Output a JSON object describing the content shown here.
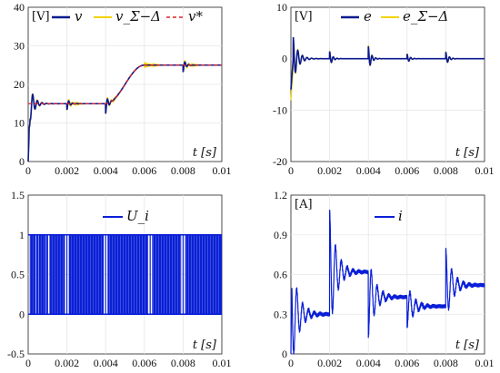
{
  "colors": {
    "blue": "#0a1fd6",
    "darkblue": "#0b1a8f",
    "yellow": "#f2d200",
    "red": "#e0202a",
    "grid": "#e6e6e6"
  },
  "chart_data": [
    {
      "id": "tl",
      "type": "line",
      "unit_label": "[V]",
      "xlabel": "t [s]",
      "xlim": [
        0,
        0.01
      ],
      "ylim": [
        0,
        40
      ],
      "xticks": [
        "0",
        "0.002",
        "0.004",
        "0.006",
        "0.008",
        "0.01"
      ],
      "yticks": [
        "0",
        "10",
        "20",
        "30",
        "40"
      ],
      "legend": [
        "v",
        "v_Σ−Δ",
        "v*"
      ],
      "series": [
        {
          "name": "v",
          "style": "solid",
          "color": "#0b1a8f"
        },
        {
          "name": "v_Σ−Δ",
          "style": "solid",
          "color": "#f2d200"
        },
        {
          "name": "v*",
          "style": "dashed",
          "color": "#e0202a"
        }
      ],
      "reference_segments": [
        {
          "t": [
            0,
            0.004
          ],
          "value": 15
        },
        {
          "t": [
            0.004,
            0.006
          ],
          "value_from": 15,
          "value_to": 25
        },
        {
          "t": [
            0.006,
            0.01
          ],
          "value": 25
        }
      ],
      "disturbance_times": [
        0.002,
        0.004,
        0.008
      ]
    },
    {
      "id": "tr",
      "type": "line",
      "unit_label": "[V]",
      "xlabel": "t [s]",
      "xlim": [
        0,
        0.01
      ],
      "ylim": [
        -20,
        10
      ],
      "xticks": [
        "0",
        "0.002",
        "0.004",
        "0.006",
        "0.008",
        "0.01"
      ],
      "yticks": [
        "-20",
        "-10",
        "0",
        "10"
      ],
      "legend": [
        "e",
        "e_Σ−Δ"
      ],
      "series": [
        {
          "name": "e",
          "style": "solid",
          "color": "#0b1a8f"
        },
        {
          "name": "e_Σ−Δ",
          "style": "solid",
          "color": "#f2d200"
        }
      ],
      "disturbance_times": [
        0.002,
        0.004,
        0.006,
        0.008
      ]
    },
    {
      "id": "bl",
      "type": "line",
      "xlabel": "t [s]",
      "xlim": [
        0,
        0.01
      ],
      "ylim": [
        -0.5,
        1.5
      ],
      "xticks": [
        "0",
        "0.002",
        "0.004",
        "0.006",
        "0.008",
        "0.01"
      ],
      "yticks": [
        "-0.5",
        "0",
        "0.5",
        "1",
        "1.5"
      ],
      "legend": [
        "U_i"
      ],
      "series": [
        {
          "name": "U_i",
          "style": "switching",
          "color": "#0a1fd6",
          "levels": [
            0,
            1
          ]
        }
      ]
    },
    {
      "id": "br",
      "type": "line",
      "unit_label": "[A]",
      "xlabel": "t [s]",
      "xlim": [
        0,
        0.01
      ],
      "ylim": [
        0,
        1.2
      ],
      "xticks": [
        "0",
        "0.002",
        "0.004",
        "0.006",
        "0.008",
        "0.01"
      ],
      "yticks": [
        "0",
        "0.3",
        "0.6",
        "0.9",
        "1.2"
      ],
      "legend": [
        "i"
      ],
      "series": [
        {
          "name": "i",
          "style": "solid",
          "color": "#0a1fd6"
        }
      ],
      "settle_levels": [
        {
          "t": [
            0,
            0.002
          ],
          "value": 0.3
        },
        {
          "t": [
            0.002,
            0.004
          ],
          "value": 0.62
        },
        {
          "t": [
            0.004,
            0.006
          ],
          "value": 0.43
        },
        {
          "t": [
            0.006,
            0.008
          ],
          "value": 0.36
        },
        {
          "t": [
            0.008,
            0.01
          ],
          "value": 0.52
        }
      ]
    }
  ]
}
